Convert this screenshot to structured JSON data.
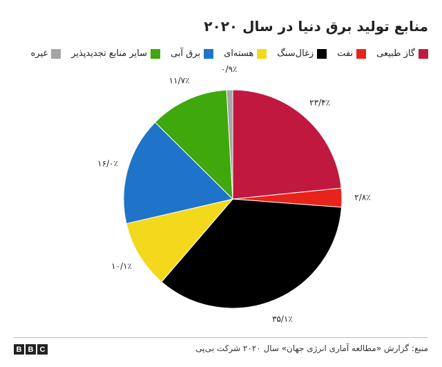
{
  "title": "منابع تولید برق دنیا در سال ۲۰۲۰",
  "source": "منبع: گزارش «مطالعه آماری انرژی جهان» سال ۲۰۲۰ شرکت بی‌پی",
  "logo_letters": [
    "B",
    "B",
    "C"
  ],
  "chart_data": {
    "type": "pie",
    "start_angle_deg": 0,
    "direction": "clockwise",
    "legend_position": "top",
    "slices": [
      {
        "label": "گاز طبیعی",
        "value": 23.4,
        "display": "۲۳/۴٪",
        "color": "#c0183f"
      },
      {
        "label": "نفت",
        "value": 2.8,
        "display": "۲/۸٪",
        "color": "#e8231b"
      },
      {
        "label": "زغال‌سنگ",
        "value": 35.1,
        "display": "۳۵/۱٪",
        "color": "#000000"
      },
      {
        "label": "هسته‌ای",
        "value": 10.1,
        "display": "۱۰/۱٪",
        "color": "#f4d81c"
      },
      {
        "label": "برق آبی",
        "value": 16.0,
        "display": "۱۶/۰٪",
        "color": "#1f74c9"
      },
      {
        "label": "سایر منابع تجدیدپذیر",
        "value": 11.7,
        "display": "۱۱/۷٪",
        "color": "#3ea80c"
      },
      {
        "label": "غیره",
        "value": 0.9,
        "display": "۰/۹٪",
        "color": "#a5a5a5"
      }
    ]
  }
}
